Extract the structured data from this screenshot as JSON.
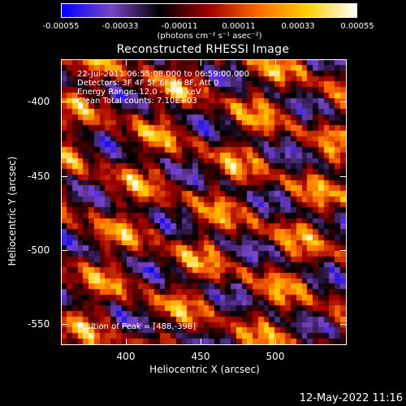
{
  "colorbar": {
    "ticks": [
      "-0.00055",
      "-0.00033",
      "-0.00011",
      "0.00011",
      "0.00033",
      "0.00055"
    ],
    "unit": "(photons cm⁻² s⁻¹ asec⁻²)",
    "colors": [
      "#0000ff",
      "#7a45c8",
      "#000000",
      "#a00000",
      "#ff6a00",
      "#ffd000",
      "#ffffff"
    ]
  },
  "title": "Reconstructed RHESSI Image",
  "annotations": {
    "time_range": "22-Jul-2011 06:55:08.000 to 06:59:00.000",
    "detectors": "Detectors: 3F 4F 5F 6F 7F 8F, Att 0",
    "energy": "Energy Range: 12.0 - 25.0 keV",
    "clean": "Clean    Total counts: 7.10E+03",
    "peak": "Position of Peak = [488,-398]"
  },
  "axes": {
    "x_label": "Heliocentric X (arcsec)",
    "y_label": "Heliocentric Y (arcsec)",
    "x_ticks": [
      "400",
      "450",
      "500"
    ],
    "y_ticks": [
      "-400",
      "-450",
      "-500",
      "-550"
    ]
  },
  "timestamp": "12-May-2022 11:16"
}
